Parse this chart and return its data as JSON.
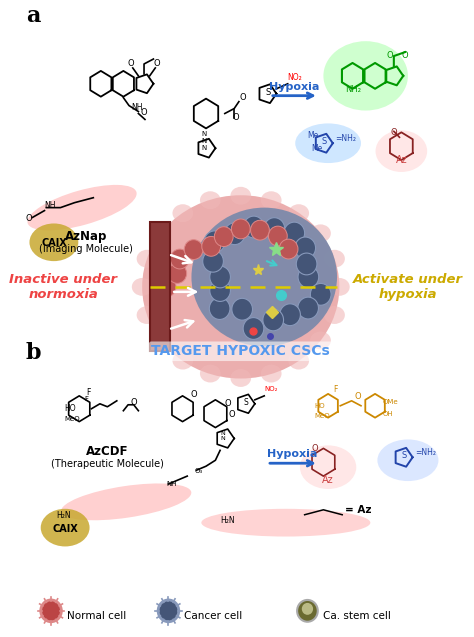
{
  "background_color": "#ffffff",
  "fig_width": 4.74,
  "fig_height": 6.37,
  "panel_a_label": "a",
  "panel_b_label": "b",
  "aznap_label": "AzNap",
  "aznap_sublabel": "(Imaging Molecule)",
  "azcdf_label": "AzCDF",
  "azcdf_sublabel": "(Therapeutic Molecule)",
  "hypoxia_text": "Hypoxia",
  "hypoxia_text2": "Hypoxia",
  "inactive_text": "Inactive under\nnormoxia",
  "activate_text": "Activate under\nhypoxia",
  "target_text": "TARGET HYPOXIC CSCs",
  "caix_text": "CAIX",
  "caix_text2": "CAIX",
  "normal_cell_text": "Normal cell",
  "cancer_cell_text": "Cancer cell",
  "cancer_stem_text": "Ca. stem cell",
  "az_eq_text": "= Az",
  "inactive_color": "#ff6b6b",
  "activate_color": "#d4a017",
  "target_color": "#5b9bd5",
  "hypoxia_color": "#2563c7",
  "green_glow": "#00cc00",
  "blue_glow": "#4488cc",
  "pink_glow": "#ffb6c1",
  "arrow_color": "#2563c7",
  "normal_cell_color": "#c06060",
  "cancer_cell_color": "#556688",
  "stem_cell_color": "#8a8a50"
}
